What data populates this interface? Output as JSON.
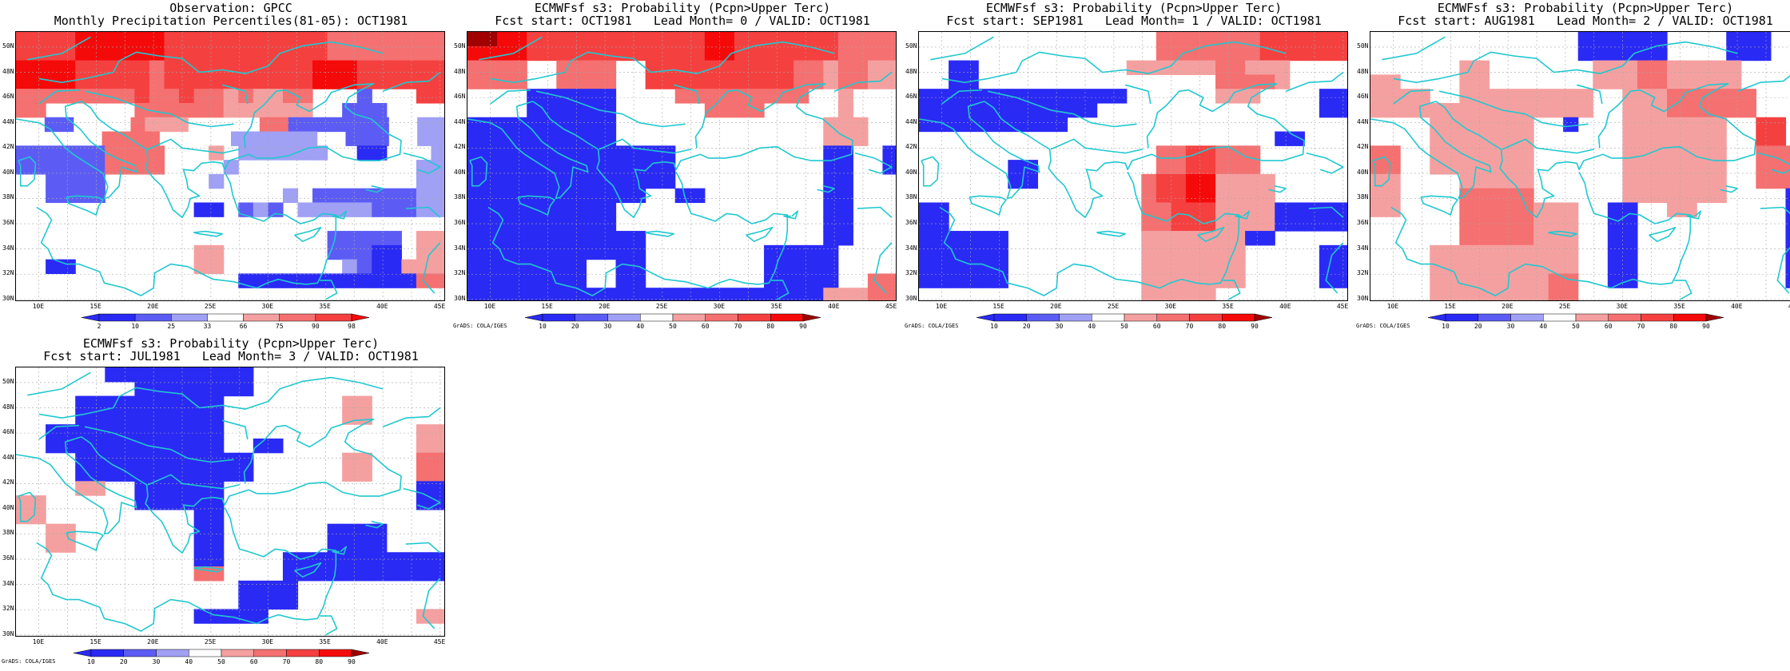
{
  "colors": {
    "blue3": "#2a2af5",
    "blue2": "#5c5cf5",
    "blue1": "#a0a0f5",
    "white": "#ffffff",
    "red1": "#f5a0a0",
    "red2": "#f57070",
    "red3": "#f54040",
    "red4": "#f50a0a",
    "red5": "#a00000",
    "coast": "#20c8d0"
  },
  "panels_common": {
    "lon_labels": [
      "10E",
      "15E",
      "20E",
      "25E",
      "30E",
      "35E",
      "40E",
      "45E"
    ],
    "lat_labels": [
      "30N",
      "32N",
      "34N",
      "36N",
      "38N",
      "40N",
      "42N",
      "44N",
      "46N",
      "48N",
      "50N"
    ]
  },
  "panels": [
    {
      "title1": "Observation: GPCC",
      "title2": "Monthly Precipitation Percentiles(81-05): OCT1981",
      "colorbar": [
        "2",
        "10",
        "25",
        "33",
        "66",
        "75",
        "90",
        "98"
      ],
      "credit": "",
      "grid": [
        "r3 r3 r3 r3 r4 r4 r4 r4 r4 r4 r3 r3 r3 r3 r3 r3 r3 r3 r3 r3 r3 r2 r2 r2 r2 r2 r2 r2 r2",
        "r3 r3 r3 r3 r4 r4 r4 r4 r4 r4 r3 r3 r3 r3 r3 r3 r3 r3 r3 r3 r3 r2 r2 r2 r2 r2 r2 r2 r2",
        "r4 r4 r4 r4 r3 r3 r3 r3 r3 r2 r3 r3 r3 r3 r3 r3 r3 r3 r3 r3 r4 r4 r4 r3 r3 r3 r3 r3 r3",
        "r4 r4 r4 r4 r3 r3 r3 r3 r3 r2 r3 r3 r3 r3 r3 r3 r3 r3 r3 r3 r4 r4 r4 r3 r3 r3 r3 r3 r3",
        "r2 r2 r2 r2 r2 r2 r2 r2 r3 r2 r2 r3 r2 r2 r1 r2 r1 r1 r2 r2 w w w b2 w w w r3 r3",
        "r2 r2 w w w w w w r2 r2 r2 r2 r2 r2 r1 r1 r1 r1 r1 r1 w w b2 b2 b2 w w w w",
        "w w b2 b2 w w w w r2 r1 r1 r1 w w w w w r2 r2 b2 b2 b2 b2 b2 b2 b2 w w b1 b1",
        "w w w w w w r2 r2 r2 r2 w w w w w b1 b1 b1 b1 b1 b1 w w b2 b2 b2 w w b1 b1",
        "b2 b2 b2 b2 b2 b2 r2 r2 r2 r2 w w w r1 w b1 b1 b1 b1 b1 b1 w w b3 b3 w w w b1",
        "b2 b2 b2 b2 b2 b2 r2 r2 r2 r2 w w w w b1 w w w w w w w w w w w w b1 b1",
        "w w b2 b2 b2 b2 w w w w w w w b1 w w w w w w w w w w w w w b1 b1",
        "w w b2 b2 b2 b2 w w w w w w w w w w w w b1 w b2 b2 b2 b2 b2 b2 b2 b1 b1",
        "w w w w w w w w w w w w b3 b3 w b2 b1 b2 w b1 b1 b1 b1 b1 b2 b2 b2 b1 b1",
        "w w w w w w w w w w w w w w w w w w w w w w w w w w w w w",
        "w w w w w w w w w w w w w w w w w w w w w b2 b2 b2 b2 b2 w r1 r1",
        "w w w w w w w w w w w w r1 r1 w w w w w w w b2 b2 b2 b3 b3 w r1 r1",
        "w w b3 b3 w w w w w w w w r1 r1 w w w w w w w w b1 b2 b3 b3 r1 r1 r1",
        "w w w w w w w w w w w w w w w b3 b3 b3 b3 b3 b3 b3 b3 b3 b3 b3 b3 r2 r2",
        "w w w w w w w w w w w w w w w w w w w w w w w w w w w w w"
      ]
    },
    {
      "title1": "ECMWFsf s3: Probability (Pcpn>Upper Terc)",
      "title2": "Fcst start: OCT1981   Lead Month= 0 / VALID: OCT1981",
      "colorbar": [
        "10",
        "20",
        "30",
        "40",
        "50",
        "60",
        "70",
        "80",
        "90"
      ],
      "credit": "GrADS: COLA/IGES",
      "grid": [
        "r5 r5 r4 r4 r3 r3 r3 r3 r3 r3 r3 r3 r3 r3 r3 r3 r4 r4 r3 r3 r3 r3 r3 r3 r3 r2 r2 r2 r2",
        "r4 r4 r4 r4 r3 r3 r3 r3 r3 r3 r3 r3 r3 r3 r3 r3 r4 r4 r3 r3 r3 r3 r3 r3 r3 r2 r2 r2 r2",
        "r2 r2 r2 r2 w w r2 r2 r2 r2 w w r3 r3 r3 r3 r3 r3 r3 r3 r3 r3 r2 r2 r1 r2 r2 r1 r1",
        "r2 r2 r2 r2 w w r2 r2 r2 r2 w w r3 r3 r3 r3 r3 r3 r3 r3 r3 r3 r2 r2 r1 r2 r2 r1 r1",
        "w w w w b3 b3 b3 b3 b3 b3 w w w w r2 r2 r2 r2 r2 r2 r2 r2 r2 w w r1 w w w",
        "w w w w b3 b3 b3 b3 b3 b3 w w w w w w r2 r2 r2 r2 w w w w w r1 w w w",
        "b3 b3 b3 b3 b3 b3 b3 b3 b3 b3 w w w w w w w w w w w w w w r1 r1 r1 w w",
        "b3 b3 b3 b3 b3 b3 b3 b3 b3 b3 w w w w w w w w w w w w w w r1 r1 r1 w w",
        "b3 b3 b3 b3 b3 b3 b3 b3 b3 b3 b3 b3 b3 b3 w w w w w w w w w w b3 b3 w w b3",
        "b3 b3 b3 b3 b3 b3 b3 b3 b3 b3 b3 b3 b3 b3 w w w w w w w w w w b3 b3 w w b3",
        "b3 b3 b3 b3 b3 b3 b3 b3 b3 b3 b3 b3 b3 b3 w w w w w w w w w w b3 b3 w w w",
        "b3 b3 b3 b3 b3 b3 b3 b3 b3 b3 b3 b3 w w b3 b3 w w w w w w w w b3 b3 w w w",
        "b3 b3 b3 b3 b3 b3 b3 b3 b3 b3 w w w w w w w w w w w w w w b3 b3 w w w",
        "b3 b3 b3 b3 b3 b3 b3 b3 b3 b3 w w w w w w w w w w w w w w b3 b3 w w w",
        "b3 b3 b3 b3 b3 b3 b3 b3 b3 b3 b3 b3 w w w w w w w w w w w w b3 b3 w w w",
        "b3 b3 b3 b3 b3 b3 b3 b3 b3 b3 b3 b3 w w w w w w w w b3 b3 b3 b3 b3 w w w w",
        "b3 b3 b3 b3 b3 b3 b3 b3 w w b3 b3 w w w w w w w w b3 b3 b3 b3 b3 w w w w",
        "b3 b3 b3 b3 b3 b3 b3 b3 w w b3 b3 w w w w w w w w b3 b3 b3 b3 b3 w w r2 r2",
        "b3 b3 b3 b3 b3 b3 b3 b3 b3 b3 b3 b3 b3 b3 b3 b3 b3 b3 b3 b3 b3 b3 b3 b3 r1 r1 r1 r2 r2"
      ]
    },
    {
      "title1": "ECMWFsf s3: Probability (Pcpn>Upper Terc)",
      "title2": "Fcst start: SEP1981   Lead Month= 1 / VALID: OCT1981",
      "colorbar": [
        "10",
        "20",
        "30",
        "40",
        "50",
        "60",
        "70",
        "80",
        "90"
      ],
      "credit": "GrADS: COLA/IGES",
      "grid": [
        "w w w w w w w w w w w w w w w w r2 r2 r2 r2 r2 r2 r2 r3 r3 r3 r3 r3 r3",
        "w w w w w w w w w w w w w w w w r2 r2 r2 r2 r2 r2 r2 r3 r3 r3 r3 r3 r3",
        "w w b3 b3 w w w w w w w w w w r1 r1 r1 r1 r1 r1 r2 r2 r1 r1 r1 w w w w",
        "w w b3 b3 w w w w w w w w w w w w w w w w r2 r2 r2 r2 r1 w w w w",
        "b3 b3 b3 b3 b3 b3 b3 b3 b3 b3 b3 b3 b3 b3 w w w w w w r1 r1 r1 w w w w b3 b3",
        "b3 b3 b3 b3 b3 b3 b3 b3 b3 b3 b3 b3 w w w w w w w w w w w w w w w b3 b3",
        "b3 b3 b3 b3 b3 b3 b3 b3 b3 b3 w w w w w w w w w w w w w w w w w w w",
        "w w w w w w w w w w w w w w w w w w w w w w w w b3 b3 w w w",
        "w w w w w w w w w w w w w w w w r2 r2 r3 r3 r2 r2 r2 w w w w w w",
        "w w w w w w b3 b3 w w w w w w w w r2 r2 r3 r3 r2 r2 r2 w w w w w w",
        "w w w w w w b3 b3 w w w w w w w r2 r3 r3 r4 r4 r1 r1 r1 r1 w w w w w",
        "w w w w w w w w w w w w w w w r2 r3 r3 r4 r4 r1 r1 r1 r1 w w w w w",
        "b3 b3 w w w w w w w w w w w w w r2 r2 r3 r3 r3 r1 r1 r1 r1 b3 b3 b3 b3 b3",
        "b3 b3 w w w w w w w w w w w w w r2 r2 r3 r3 r3 r1 r1 r1 r1 b3 b3 b3 b3 b3",
        "b3 b3 b3 b3 b3 b3 w w w w w w w w w r1 r1 r1 r1 r1 r1 r1 b3 b3 w w w w w",
        "b3 b3 b3 b3 b3 b3 w w w w w w w w w r1 r1 r1 r1 r1 r1 r1 w w w w w b3 b3",
        "b3 b3 b3 b3 b3 b3 w w w w w w w w w r1 r1 r1 r1 r1 r1 r1 w w w w w b3 b3",
        "b3 b3 b3 b3 b3 b3 w w w w w w w w w r1 r1 r1 r1 r1 r1 r1 w w w w w b3 b3",
        "w w w w w w w w w w w w w w w r1 r1 r1 r1 r1 w w w w w w w w w"
      ]
    },
    {
      "title1": "ECMWFsf s3: Probability (Pcpn>Upper Terc)",
      "title2": "Fcst start: AUG1981   Lead Month= 2 / VALID: OCT1981",
      "colorbar": [
        "10",
        "20",
        "30",
        "40",
        "50",
        "60",
        "70",
        "80",
        "90"
      ],
      "credit": "GrADS: COLA/IGES",
      "grid": [
        "w w w w w w w w w w w w w w b3 b3 b3 b3 b3 b3 w w w w b3 b3 b3 w w",
        "w w w w w w w w w w w w w w b3 b3 b3 b3 b3 b3 w w w w b3 b3 b3 w w",
        "w w w w w w r1 r1 w w w w w w w r1 r1 r1 r2 r2 r1 r1 r1 r1 r1 w w w w",
        "r1 r1 w w w w r1 r1 w w w w w w w r1 r1 r1 r2 r2 r1 r1 r1 r1 r1 w w w w",
        "r1 r1 r1 r1 w w r1 r1 r1 r1 r1 r1 r1 r1 r1 w w r1 r1 r1 r2 r2 r2 r2 r2 r2 w w w",
        "r1 r1 r1 r1 r1 r1 r1 r1 r1 r1 r1 r1 r1 r1 r1 w w r1 r1 r1 r2 r2 r2 r2 r2 r2 w w w",
        "w w w w r1 r1 r1 r1 r1 r1 r1 w w b3 w w w r1 r1 r1 r1 r1 r1 r1 w w r3 r3 w",
        "w w w w r1 r1 r1 r1 r1 r1 r1 w w w w w w r1 r1 r1 r1 r1 r1 r1 w w r3 r3 w",
        "r2 r2 w w r1 r1 r1 r1 r1 r1 r1 w w w w w w r1 r1 r1 r1 r1 r1 r1 w w r2 r2 r2",
        "r2 r2 w w r1 r1 r1 r1 r1 r1 r1 w w w w w w r1 r1 r1 r1 r1 r1 r1 w w r2 r2 r2",
        "r1 r1 w w w w r1 r1 r1 r1 r1 w w w w w w r1 r1 r1 r1 r1 r1 r1 w w r2 r2 r2",
        "r1 r1 w w w w r2 r2 r2 r2 r2 w w w w w w r1 r1 r1 r1 r1 r1 r1 w w w w b3",
        "r1 r1 w w w w r2 r2 r2 r2 r2 r1 r1 r1 w w b3 b3 w w r1 r1 w w w w w w b3",
        "w w w w w w r2 r2 r2 r2 r2 r1 r1 r1 w w b3 b3 w w w w w w w w w w b3",
        "w w w w w w r2 r2 r2 r2 r2 r1 r1 r1 w w b3 b3 w w w w w w w w w w b3",
        "w w w w r1 r1 r1 r1 r1 r1 r1 r1 r1 r1 w w b3 b3 w w w w w w w w w w b3",
        "w w w w r1 r1 r1 r1 r1 r1 r1 r1 r1 r1 w w b3 b3 w w w w w w w w w w b3",
        "w w w w r1 r1 r1 r1 r1 r1 r1 r1 r2 r2 w w b3 b3 w w w w w w w w w w b3",
        "w w w w r1 r1 r1 r1 r1 r1 r1 r1 r2 r2 w w w w w w w w w w w w w w w"
      ]
    },
    {
      "title1": "ECMWFsf s3: Probability (Pcpn>Upper Terc)",
      "title2": "Fcst start: JUL1981   Lead Month= 3 / VALID: OCT1981",
      "colorbar": [
        "10",
        "20",
        "30",
        "40",
        "50",
        "60",
        "70",
        "80",
        "90"
      ],
      "credit": "GrADS: COLA/IGES",
      "grid": [
        "w w w w w w b3 b3 b3 b3 b3 b3 b3 b3 b3 b3 w w w w w w w w w w w w w",
        "w w w w w w w w b3 b3 b3 b3 b3 b3 b3 b3 w w w w w w w w w w w w w",
        "w w w w b3 b3 b3 b3 b3 b3 b3 b3 b3 b3 w w w w w w w w r1 r1 w w w w w",
        "w w w w b3 b3 b3 b3 b3 b3 b3 b3 b3 b3 w w w w w w w w r1 r1 w w w w w",
        "w w b3 b3 b3 b3 b3 b3 b3 b3 b3 b3 b3 b3 w w w w w w w w w w w w w r1 r1",
        "w w b3 b3 b3 b3 b3 b3 b3 b3 b3 b3 b3 b3 w w b3 b3 w w w w w w w w w r1 r1",
        "w w w w b3 b3 b3 b3 b3 b3 b3 b3 b3 b3 b3 b3 w w w w w w r1 r1 w w w r2 r2",
        "w w w w b3 b3 b3 b3 b3 b3 b3 b3 b3 b3 b3 b3 w w w w w w r1 r1 w w w r2 r2",
        "w w w w r1 r1 w w b3 b3 b3 b3 b3 b3 w w w w w w w w w w w w w b3 b3",
        "r1 r1 w w w w w w b3 b3 b3 b3 b3 b3 w w w w w w w w w w w w w b3 b3",
        "r1 r1 w w w w w w w w w w b3 b3 w w w w w w w w w w w w w w w",
        "w w r1 r1 w w w w w w w w b3 b3 w w w w w w w b3 b3 b3 b3 w w w w",
        "w w r1 r1 w w w w w w w w b3 b3 w w w w w w w b3 b3 b3 b3 w w w w",
        "w w w w w w w w w w w w b3 b3 w w w w b3 b3 b3 b3 b3 b3 b3 b3 b3 b3 b3",
        "w w w w w w w w w w w w r2 r2 w w w w b3 b3 b3 b3 b3 b3 b3 b3 b3 b3 b3",
        "w w w w w w w w w w w w w w w b3 b3 b3 b3 w w w w w w w w w w",
        "w w w w w w w w w w w w w w w b3 b3 b3 b3 w w w w w w w w w w",
        "w w w w w w w w w w w w b3 b3 b3 b3 b3 w w w w w w w w w w r1 r1",
        "w w w w w w w w w w w w w w w w w w w w w w w w w w w w w"
      ]
    }
  ]
}
